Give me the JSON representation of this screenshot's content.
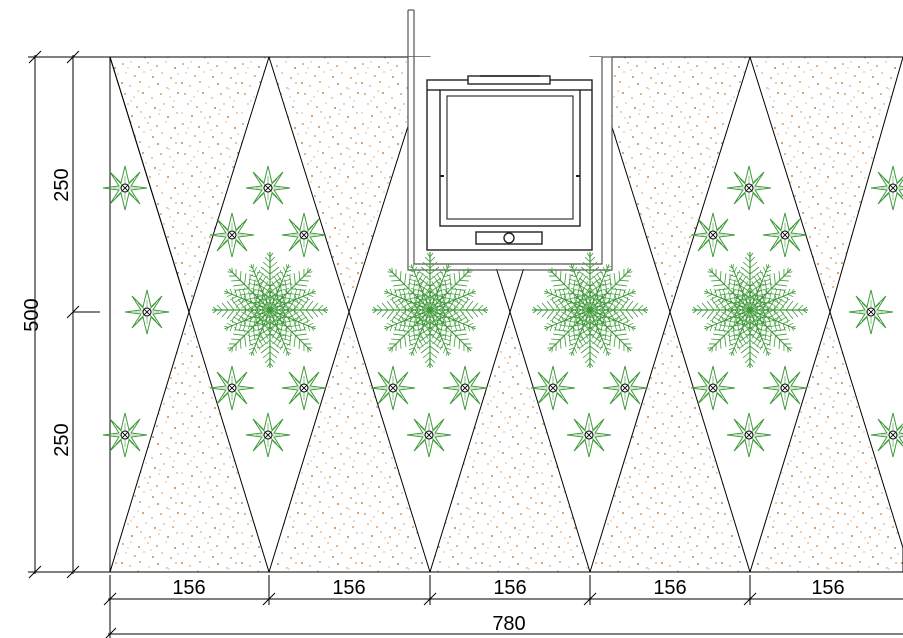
{
  "drawing": {
    "dimensions": {
      "vertical_total": "500",
      "vertical_upper": "250",
      "vertical_lower": "250",
      "horizontal_segments": [
        "156",
        "156",
        "156",
        "156",
        "156"
      ],
      "horizontal_total": "780"
    },
    "colors": {
      "line": "#000000",
      "gravel": "#c8864a",
      "gravel_dark": "#8a5a2e",
      "plant": "#3f9a3a",
      "window_frame": "#222222"
    },
    "elements": {
      "gravel_triangles": 10,
      "fern_plants": 4,
      "star_plants": 24,
      "ventilation_window": 1
    }
  }
}
